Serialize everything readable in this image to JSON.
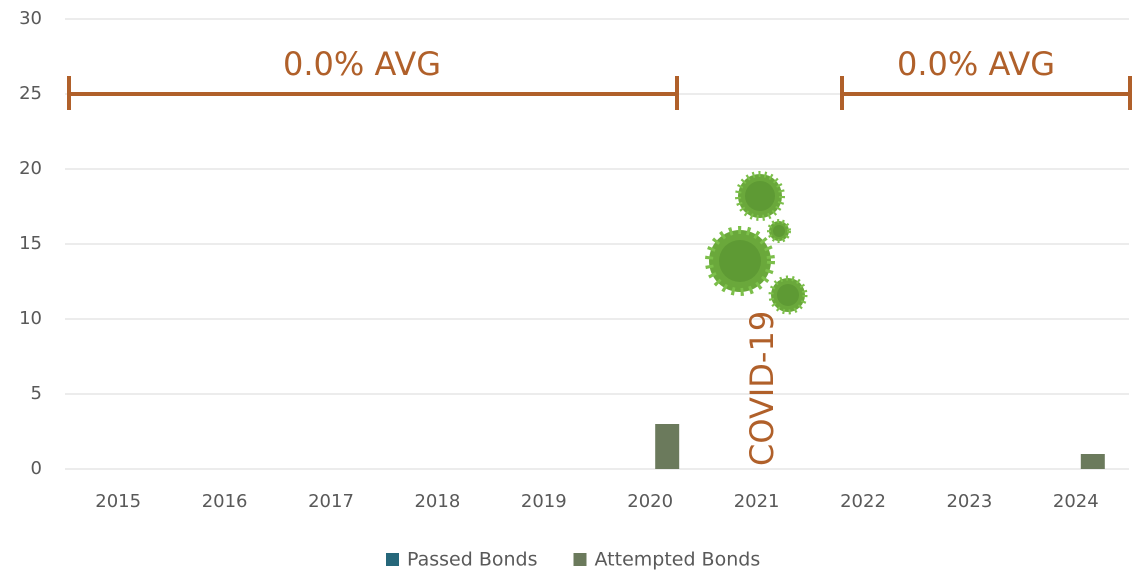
{
  "chart_data": {
    "type": "bar",
    "categories": [
      "2015",
      "2016",
      "2017",
      "2018",
      "2019",
      "2020",
      "2021",
      "2022",
      "2023",
      "2024"
    ],
    "series": [
      {
        "name": "Passed Bonds",
        "color": "#26677a",
        "values": [
          0,
          0,
          0,
          0,
          0,
          0,
          0,
          0,
          0,
          0
        ]
      },
      {
        "name": "Attempted Bonds",
        "color": "#6b7a5c",
        "values": [
          0,
          0,
          0,
          0,
          0,
          3,
          0,
          0,
          0,
          1
        ]
      }
    ],
    "ylim": [
      0,
      30
    ],
    "yticks": [
      0,
      5,
      10,
      15,
      20,
      25,
      30
    ],
    "grid": true,
    "annotations": [
      "0.0% AVG",
      "0.0% AVG",
      "COVID-19"
    ]
  }
}
